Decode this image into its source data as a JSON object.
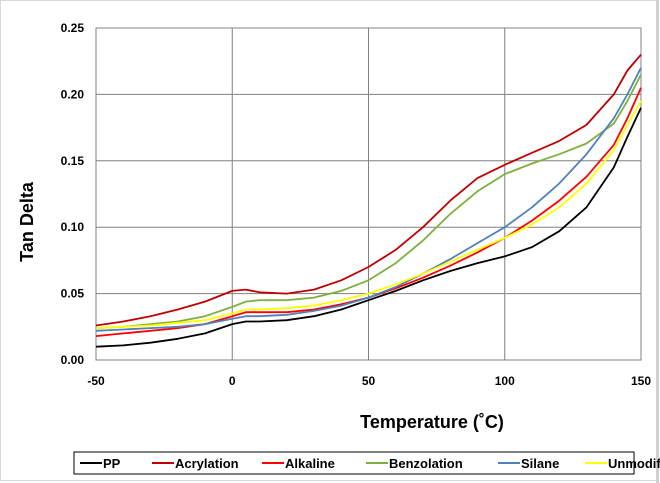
{
  "chart_data": {
    "type": "line",
    "xlabel": "Temperature (˚C)",
    "ylabel": "Tan Delta",
    "xlim": [
      -50,
      150
    ],
    "ylim": [
      0,
      0.25
    ],
    "x_ticks": [
      "-50",
      "0",
      "50",
      "100",
      "150"
    ],
    "y_ticks": [
      "0.00",
      "0.05",
      "0.10",
      "0.15",
      "0.20",
      "0.25"
    ],
    "grid": true,
    "legend_position": "bottom",
    "series": [
      {
        "name": "PP",
        "color": "#000000",
        "x": [
          -50,
          -40,
          -30,
          -20,
          -10,
          0,
          5,
          10,
          20,
          30,
          40,
          50,
          60,
          70,
          80,
          90,
          100,
          110,
          120,
          130,
          140,
          145,
          150
        ],
        "y": [
          0.01,
          0.011,
          0.013,
          0.016,
          0.02,
          0.027,
          0.029,
          0.029,
          0.03,
          0.033,
          0.038,
          0.045,
          0.052,
          0.06,
          0.067,
          0.073,
          0.078,
          0.085,
          0.097,
          0.115,
          0.145,
          0.168,
          0.19
        ]
      },
      {
        "name": "Acrylation",
        "color": "#c00000",
        "x": [
          -50,
          -40,
          -30,
          -20,
          -10,
          0,
          5,
          10,
          20,
          30,
          40,
          50,
          60,
          70,
          80,
          90,
          100,
          110,
          120,
          130,
          140,
          145,
          150
        ],
        "y": [
          0.026,
          0.029,
          0.033,
          0.038,
          0.044,
          0.052,
          0.053,
          0.051,
          0.05,
          0.053,
          0.06,
          0.07,
          0.083,
          0.1,
          0.12,
          0.137,
          0.147,
          0.156,
          0.165,
          0.177,
          0.2,
          0.218,
          0.23
        ]
      },
      {
        "name": "Alkaline",
        "color": "#ff0000",
        "x": [
          -50,
          -40,
          -30,
          -20,
          -10,
          0,
          5,
          10,
          20,
          30,
          40,
          50,
          60,
          70,
          80,
          90,
          100,
          110,
          120,
          130,
          140,
          145,
          150
        ],
        "y": [
          0.018,
          0.02,
          0.022,
          0.024,
          0.027,
          0.033,
          0.036,
          0.036,
          0.036,
          0.038,
          0.042,
          0.047,
          0.054,
          0.062,
          0.071,
          0.081,
          0.092,
          0.105,
          0.12,
          0.138,
          0.162,
          0.182,
          0.205
        ]
      },
      {
        "name": "Benzolation",
        "color": "#7fb03f",
        "x": [
          -50,
          -40,
          -30,
          -20,
          -10,
          0,
          5,
          10,
          20,
          30,
          40,
          50,
          60,
          70,
          80,
          90,
          100,
          110,
          120,
          130,
          140,
          145,
          150
        ],
        "y": [
          0.024,
          0.025,
          0.027,
          0.029,
          0.033,
          0.04,
          0.044,
          0.045,
          0.045,
          0.047,
          0.052,
          0.06,
          0.073,
          0.09,
          0.11,
          0.127,
          0.14,
          0.148,
          0.155,
          0.163,
          0.178,
          0.195,
          0.215
        ]
      },
      {
        "name": "Silane",
        "color": "#4f81bd",
        "x": [
          -50,
          -40,
          -30,
          -20,
          -10,
          0,
          5,
          10,
          20,
          30,
          40,
          50,
          60,
          70,
          80,
          90,
          100,
          110,
          120,
          130,
          140,
          145,
          150
        ],
        "y": [
          0.022,
          0.023,
          0.024,
          0.025,
          0.027,
          0.031,
          0.033,
          0.033,
          0.034,
          0.037,
          0.041,
          0.047,
          0.055,
          0.065,
          0.076,
          0.088,
          0.1,
          0.115,
          0.133,
          0.155,
          0.182,
          0.2,
          0.22
        ]
      },
      {
        "name": "Unmodified",
        "color": "#ffff00",
        "x": [
          -50,
          -40,
          -30,
          -20,
          -10,
          0,
          5,
          10,
          20,
          30,
          40,
          50,
          60,
          70,
          80,
          90,
          100,
          110,
          120,
          130,
          140,
          145,
          150
        ],
        "y": [
          0.024,
          0.025,
          0.026,
          0.028,
          0.03,
          0.035,
          0.038,
          0.038,
          0.039,
          0.041,
          0.045,
          0.05,
          0.057,
          0.065,
          0.074,
          0.083,
          0.092,
          0.102,
          0.115,
          0.133,
          0.158,
          0.177,
          0.195
        ]
      }
    ]
  }
}
